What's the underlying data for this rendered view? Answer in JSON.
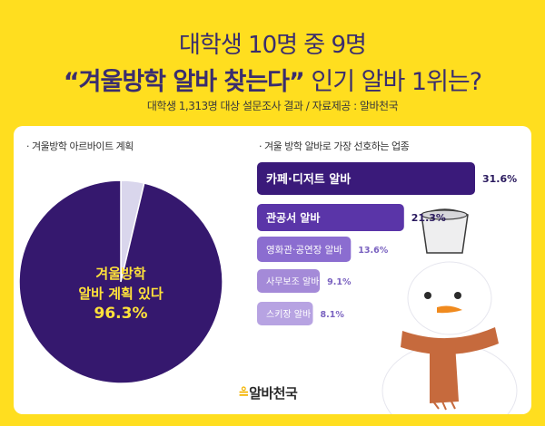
{
  "header": {
    "line1": "대학생 10명 중 9명",
    "line2_quote": "“겨울방학 알바 찾는다”",
    "line2_rest": " 인기 알바 1위는?",
    "subtitle": "대학생 1,313명 대상 설문조사 결과 / 자료제공 : 알바천국"
  },
  "brand": {
    "name": "알바천국",
    "mark": "≗"
  },
  "colors": {
    "background": "#ffde1f",
    "pie_main": "#35186e",
    "pie_rest": "#d9d6ec",
    "bar_dark": "#3a1a7a",
    "bar_mid": "#5a35a8",
    "bar_light": "#8b6dd0",
    "bar_lighter": "#a48ad8",
    "bar_lightest": "#b7a3e2"
  },
  "chart_data": [
    {
      "type": "pie",
      "title": "· 겨울방학 아르바이트 계획",
      "slices": [
        {
          "label": "겨울방학 알바 계획 있다",
          "value": 96.3,
          "label_lines": [
            "겨울방학",
            "알바 계획 있다",
            "96.3%"
          ]
        },
        {
          "label": "",
          "value": 3.7
        }
      ]
    },
    {
      "type": "bar",
      "orientation": "horizontal",
      "title": "· 겨울 방학 알바로 가장 선호하는 업종",
      "categories": [
        "카페·디저트 알바",
        "관공서 알바",
        "영화관·공연장 알바",
        "사무보조 알바",
        "스키장 알바"
      ],
      "values": [
        31.6,
        21.3,
        13.6,
        9.1,
        8.1
      ],
      "value_labels": [
        "31.6%",
        "21.3%",
        "13.6%",
        "9.1%",
        "8.1%"
      ]
    }
  ]
}
